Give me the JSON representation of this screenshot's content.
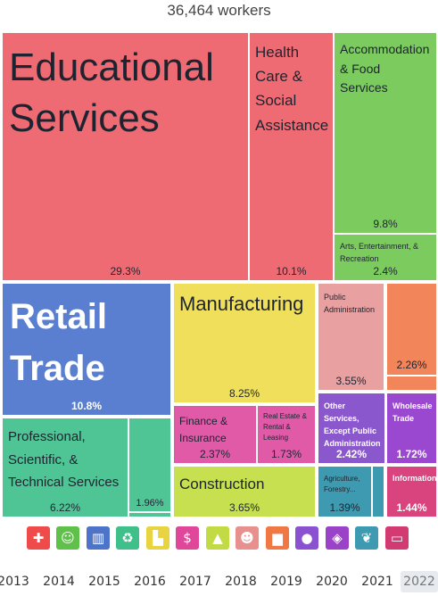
{
  "header": {
    "title": "36,464 workers"
  },
  "tiles": {
    "educational": {
      "label": "Educational Services",
      "pct": "29.3%",
      "color": "#ef6b73"
    },
    "health": {
      "label": "Health Care & Social Assistance",
      "pct": "10.1%",
      "color": "#ef6b73"
    },
    "accommodation": {
      "label": "Accommodation & Food Services",
      "pct": "9.8%",
      "color": "#7ccb5e"
    },
    "arts": {
      "label": "Arts, Entertainment, & Recreation",
      "pct": "2.4%",
      "color": "#7ccb5e"
    },
    "retail": {
      "label": "Retail Trade",
      "pct": "10.8%",
      "color": "#5b7fd0"
    },
    "manufacturing": {
      "label": "Manufacturing",
      "pct": "8.25%",
      "color": "#f0df5a"
    },
    "public_admin": {
      "label": "Public Administration",
      "pct": "3.55%",
      "color": "#e8a0a0"
    },
    "orange": {
      "label": "",
      "pct": "2.26%",
      "color": "#f2855a"
    },
    "professional": {
      "label": "Professional, Scientific, & Technical Services",
      "pct": "6.22%",
      "color": "#4fc596"
    },
    "professional_small": {
      "label": "",
      "pct": "1.96%",
      "color": "#4fc596"
    },
    "finance": {
      "label": "Finance & Insurance",
      "pct": "2.37%",
      "color": "#e05aa8"
    },
    "real_estate": {
      "label": "Real Estate & Rental & Leasing",
      "pct": "1.73%",
      "color": "#e05aa8"
    },
    "other_services": {
      "label": "Other Services, Except Public Administration",
      "pct": "2.42%",
      "color": "#8a58cc"
    },
    "wholesale": {
      "label": "Wholesale Trade",
      "pct": "1.72%",
      "color": "#9a48d0"
    },
    "construction": {
      "label": "Construction",
      "pct": "3.65%",
      "color": "#c6e04f"
    },
    "agriculture": {
      "label": "Agriculture, Forestry...",
      "pct": "1.39%",
      "color": "#3d9ab0"
    },
    "information": {
      "label": "Information",
      "pct": "1.44%",
      "color": "#d9437e"
    }
  },
  "icons": [
    {
      "name": "health-cross-icon",
      "glyph": "✚",
      "color": "#ef4b4b"
    },
    {
      "name": "theater-masks-icon",
      "glyph": "☺",
      "color": "#5fc04a"
    },
    {
      "name": "storefront-icon",
      "glyph": "▥",
      "color": "#4d74c8"
    },
    {
      "name": "recycle-icon",
      "glyph": "♻",
      "color": "#3fc08a"
    },
    {
      "name": "factory-icon",
      "glyph": "▙",
      "color": "#e8d340"
    },
    {
      "name": "bank-building-icon",
      "glyph": "$",
      "color": "#e0469a"
    },
    {
      "name": "traffic-cone-icon",
      "glyph": "▲",
      "color": "#c2da44"
    },
    {
      "name": "people-icon",
      "glyph": "☻",
      "color": "#e8908e"
    },
    {
      "name": "truck-icon",
      "glyph": "▆",
      "color": "#f07845"
    },
    {
      "name": "person-icon",
      "glyph": "●",
      "color": "#8a52d0"
    },
    {
      "name": "box-icon",
      "glyph": "◈",
      "color": "#9a42c8"
    },
    {
      "name": "wheat-icon",
      "glyph": "❦",
      "color": "#3d9ab0"
    },
    {
      "name": "computer-icon",
      "glyph": "▭",
      "color": "#d23b72"
    }
  ],
  "years": [
    "2013",
    "2014",
    "2015",
    "2016",
    "2017",
    "2018",
    "2019",
    "2020",
    "2021",
    "2022"
  ],
  "selected_year": "2022"
}
